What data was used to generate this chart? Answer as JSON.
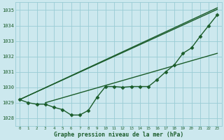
{
  "title": "Graphe pression niveau de la mer (hPa)",
  "bg_color": "#cce8ee",
  "grid_color": "#99ccd4",
  "line_color": "#1a5c2a",
  "xlim": [
    -0.5,
    23.5
  ],
  "ylim": [
    1027.5,
    1035.5
  ],
  "yticks": [
    1028,
    1029,
    1030,
    1031,
    1032,
    1033,
    1034,
    1035
  ],
  "xticks": [
    0,
    1,
    2,
    3,
    4,
    5,
    6,
    7,
    8,
    9,
    10,
    11,
    12,
    13,
    14,
    15,
    16,
    17,
    18,
    19,
    20,
    21,
    22,
    23
  ],
  "series_main": {
    "x": [
      0,
      1,
      2,
      3,
      4,
      5,
      6,
      7,
      8,
      9,
      10,
      11,
      12,
      13,
      14,
      15,
      16,
      17,
      18,
      19,
      20,
      21,
      22,
      23
    ],
    "y": [
      1029.2,
      1029.0,
      1028.9,
      1028.9,
      1028.7,
      1028.55,
      1028.2,
      1028.2,
      1028.5,
      1029.35,
      1030.05,
      1030.05,
      1030.0,
      1030.05,
      1030.05,
      1030.05,
      1030.5,
      1031.0,
      1031.45,
      1032.2,
      1032.55,
      1033.3,
      1034.0,
      1034.7
    ],
    "marker": "D",
    "markersize": 2.5,
    "linewidth": 1.0
  },
  "series_line1": {
    "x": [
      0,
      23
    ],
    "y": [
      1029.2,
      1035.05
    ],
    "linewidth": 1.0
  },
  "series_line2": {
    "x": [
      0,
      23
    ],
    "y": [
      1029.2,
      1035.15
    ],
    "linewidth": 1.0
  },
  "series_line3": {
    "x": [
      3,
      23
    ],
    "y": [
      1029.0,
      1032.2
    ],
    "linewidth": 1.0
  }
}
